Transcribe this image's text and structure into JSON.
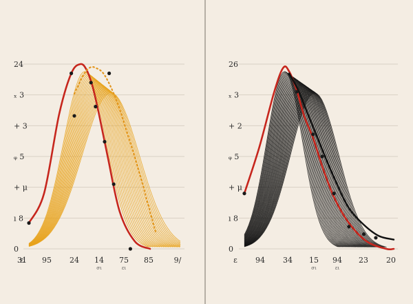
{
  "chart_data": [
    {
      "type": "line",
      "title": "",
      "xlabel": "",
      "ylabel": "",
      "grid": true,
      "legend": "none",
      "y_tick_labels": [
        "24",
        "ₓ 3",
        "+ 3",
        "ᵩ 5",
        "+ μ",
        "ı 8",
        "0"
      ],
      "x_tick_labels": [
        "ε",
        "95",
        "24",
        "14",
        "75",
        "85",
        "9/",
        "31"
      ],
      "x_tick_sublabels": [
        "σι",
        "ει"
      ],
      "colors": {
        "fill_lines": "#e8a21b",
        "dotted": "#e2961f",
        "curve": "#c6261d",
        "markers": "#1a1a1a"
      },
      "series": [
        {
          "style": "red-line",
          "x": [
            0.0,
            0.1,
            0.2,
            0.28,
            0.34,
            0.38,
            0.42,
            0.46,
            0.52,
            0.6,
            0.7,
            0.8
          ],
          "y": [
            0.14,
            0.3,
            0.73,
            0.95,
            1.0,
            0.97,
            0.88,
            0.74,
            0.5,
            0.2,
            0.04,
            0.0
          ]
        },
        {
          "style": "fill-lines",
          "center": 0.37,
          "width": 0.14,
          "count": 22,
          "shift": 0.17
        },
        {
          "style": "dotted",
          "x": [
            0.3,
            0.36,
            0.4,
            0.44,
            0.5,
            0.58,
            0.66,
            0.75,
            0.84
          ],
          "y": [
            0.84,
            0.94,
            0.98,
            0.98,
            0.94,
            0.8,
            0.6,
            0.35,
            0.08
          ]
        }
      ],
      "markers": [
        {
          "x": 0.0,
          "y": 0.14
        },
        {
          "x": 0.28,
          "y": 0.95
        },
        {
          "x": 0.3,
          "y": 0.72
        },
        {
          "x": 0.41,
          "y": 0.9
        },
        {
          "x": 0.44,
          "y": 0.77
        },
        {
          "x": 0.5,
          "y": 0.58
        },
        {
          "x": 0.53,
          "y": 0.95
        },
        {
          "x": 0.56,
          "y": 0.35
        },
        {
          "x": 0.67,
          "y": 0.0
        }
      ]
    },
    {
      "type": "line",
      "title": "",
      "xlabel": "",
      "ylabel": "",
      "grid": true,
      "legend": "none",
      "y_tick_labels": [
        "26",
        "ₓ 3",
        "+ 2",
        "ᵩ 5",
        "+ μ",
        "ı 8",
        "0"
      ],
      "x_tick_labels": [
        "ε",
        "94",
        "34",
        "15",
        "94",
        "23",
        "20"
      ],
      "x_tick_sublabels": [
        "σι",
        "ει"
      ],
      "colors": {
        "fill_lines": "#141414",
        "curve": "#c6261d",
        "markers": "#1a1a1a"
      },
      "series": [
        {
          "style": "red-line",
          "x": [
            0.0,
            0.1,
            0.2,
            0.26,
            0.3,
            0.35,
            0.4,
            0.46,
            0.52,
            0.6,
            0.7,
            0.82,
            0.95,
            1.0
          ],
          "y": [
            0.3,
            0.55,
            0.85,
            0.98,
            0.96,
            0.86,
            0.72,
            0.6,
            0.45,
            0.28,
            0.14,
            0.04,
            0.0,
            0.0
          ]
        },
        {
          "style": "fill-lines",
          "center": 0.27,
          "width": 0.12,
          "count": 34,
          "shift": 0.2
        },
        {
          "style": "black-line",
          "x": [
            0.3,
            0.36,
            0.42,
            0.48,
            0.55,
            0.62,
            0.7,
            0.8,
            0.9,
            1.0
          ],
          "y": [
            0.95,
            0.86,
            0.74,
            0.62,
            0.48,
            0.35,
            0.22,
            0.13,
            0.07,
            0.05
          ]
        }
      ],
      "markers": [
        {
          "x": 0.0,
          "y": 0.3
        },
        {
          "x": 0.35,
          "y": 0.85
        },
        {
          "x": 0.46,
          "y": 0.62
        },
        {
          "x": 0.52,
          "y": 0.5
        },
        {
          "x": 0.6,
          "y": 0.3
        },
        {
          "x": 0.7,
          "y": 0.12
        },
        {
          "x": 0.8,
          "y": 0.08
        },
        {
          "x": 0.88,
          "y": 0.06
        }
      ]
    }
  ]
}
